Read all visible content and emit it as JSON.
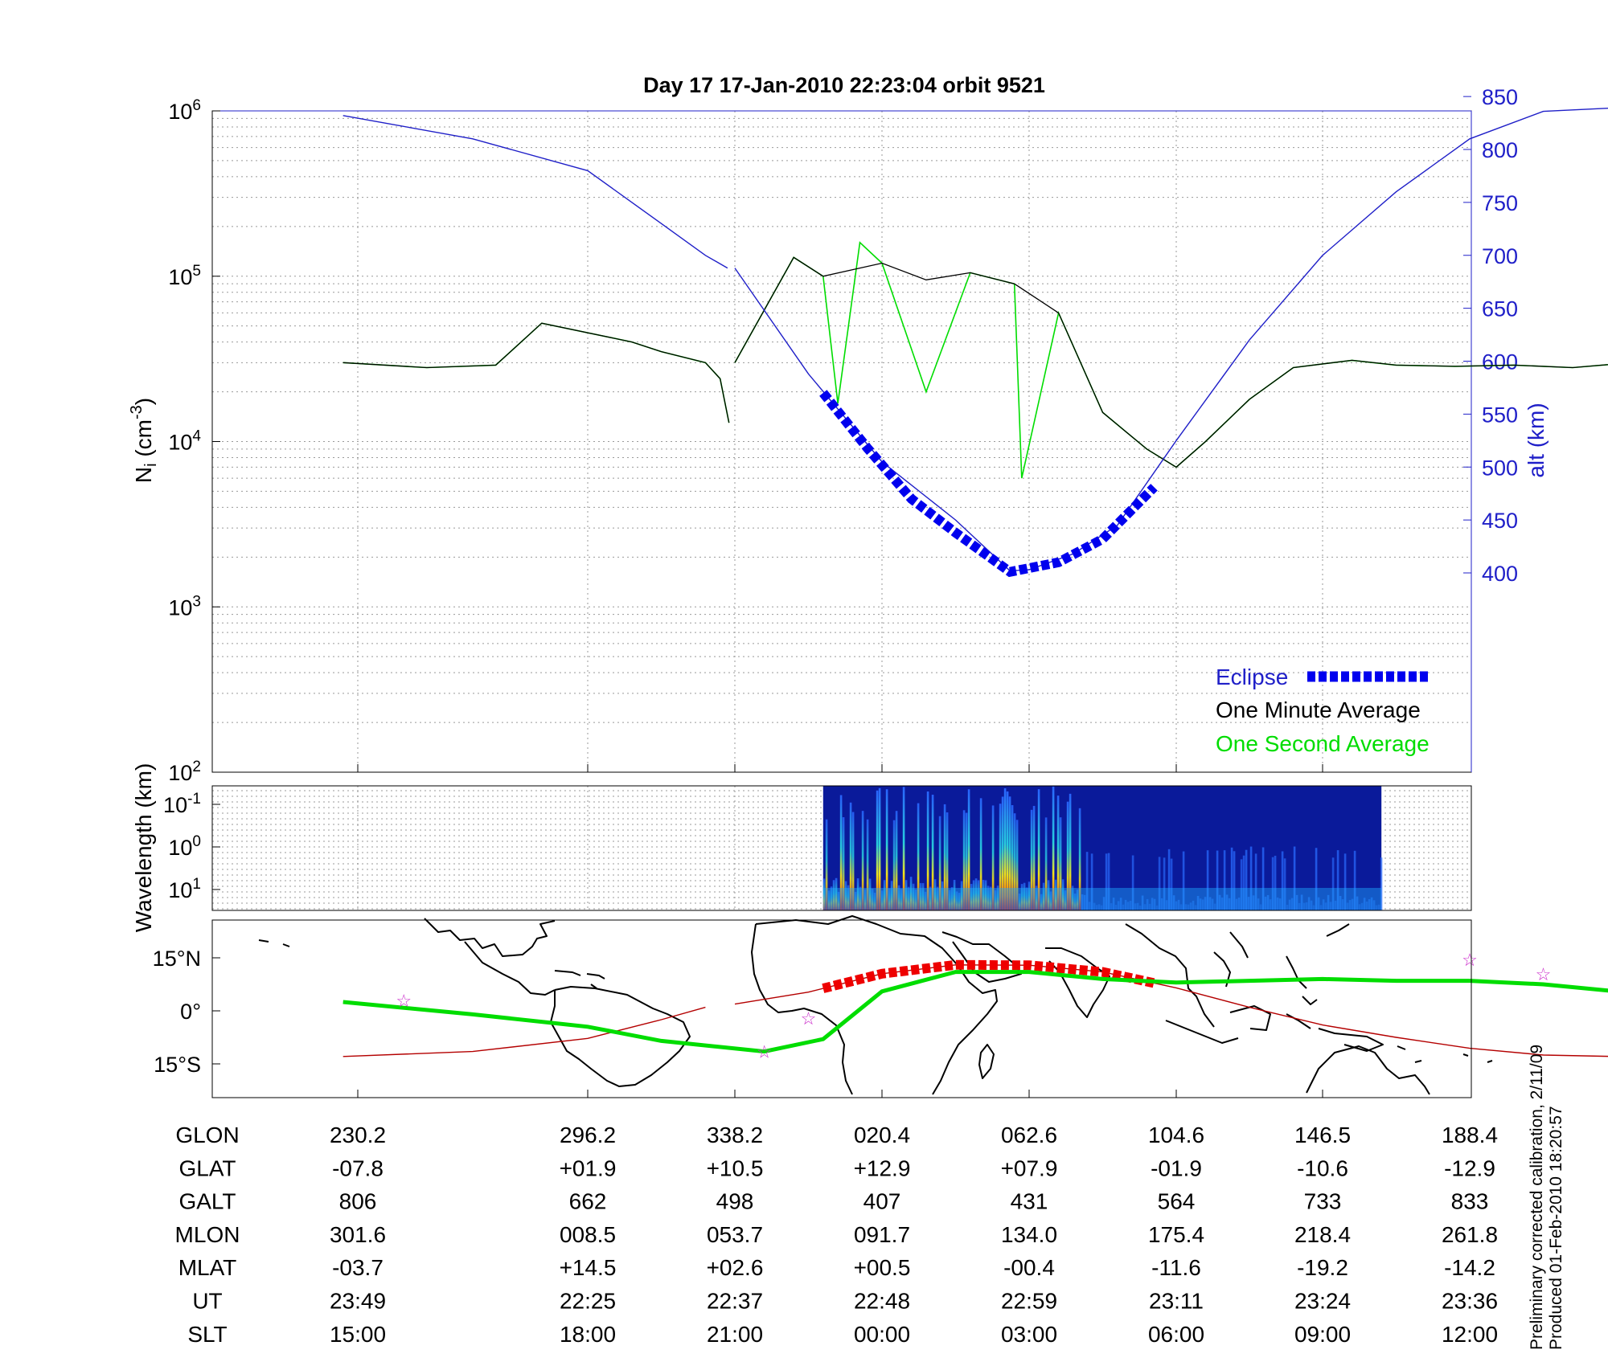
{
  "title": "Day 17  17-Jan-2010 22:23:04   orbit 9521",
  "colors": {
    "eclipse": "#0000ee",
    "one_minute": "#000000",
    "one_second": "#00dd00",
    "altitude": "#1f1fc8",
    "orbit_track": "#b40000",
    "equator_track": "#00dd00",
    "stars": "#cc33cc"
  },
  "chart_data": [
    {
      "type": "line",
      "panel": "density",
      "y_scale": "log",
      "ylabel": "N_i (cm^-3)",
      "ylim": [
        100,
        1000000
      ],
      "y_ticks": [
        "10^2",
        "10^3",
        "10^4",
        "10^5",
        "10^6"
      ],
      "y2label": "alt (km)",
      "y2lim": [
        375,
        875
      ],
      "y2_ticks": [
        400,
        450,
        500,
        550,
        600,
        650,
        700,
        750,
        800,
        850
      ],
      "x_ticks_ut": [
        "23:49",
        "22:25",
        "22:37",
        "22:48",
        "22:59",
        "23:11",
        "23:24",
        "23:36"
      ],
      "legend_position": "bottom-right",
      "series": [
        {
          "name": "One Minute Average",
          "x": [
            -0.1,
            0.3,
            0.6,
            0.8,
            1.3,
            1.5,
            1.8,
            1.9,
            1.96,
            2.0,
            2.4,
            2.6,
            3.0,
            3.3,
            3.6,
            3.9,
            4.2,
            4.5,
            4.8,
            5.0,
            5.2,
            5.5,
            5.8,
            6.2,
            6.5,
            6.9,
            7.3,
            7.7,
            8.1,
            8.5
          ],
          "y": [
            30000,
            28000,
            29000,
            52000,
            40000,
            35000,
            30000,
            24000,
            13000,
            30000,
            130000,
            100000,
            120000,
            95000,
            105000,
            90000,
            60000,
            15000,
            9000,
            7000,
            10000,
            18000,
            28000,
            31000,
            29000,
            28500,
            29000,
            28000,
            30000,
            29000
          ]
        },
        {
          "name": "One Second Average",
          "x": [
            -0.1,
            0.3,
            0.6,
            0.8,
            1.3,
            1.5,
            1.8,
            1.9,
            1.96,
            2.0,
            2.4,
            2.6,
            2.7,
            2.85,
            3.0,
            3.3,
            3.6,
            3.9,
            3.95,
            4.2,
            4.5,
            4.8,
            5.0,
            5.2,
            5.5,
            5.8,
            6.2,
            6.5,
            6.9,
            7.3,
            7.7,
            8.1,
            8.5
          ],
          "y": [
            30000,
            28000,
            29000,
            52000,
            40000,
            35000,
            30000,
            24000,
            13000,
            30000,
            130000,
            100000,
            17000,
            160000,
            120000,
            20000,
            105000,
            90000,
            6000,
            60000,
            15000,
            9000,
            7000,
            10000,
            18000,
            28000,
            31000,
            29000,
            28500,
            29000,
            28000,
            30000,
            29000
          ]
        },
        {
          "name": "Altitude",
          "x": [
            -0.1,
            0.5,
            1.0,
            1.5,
            1.8,
            1.95,
            2.0,
            2.5,
            3.0,
            3.5,
            3.87,
            4.0,
            4.3,
            4.6,
            5.0,
            5.5,
            6.0,
            6.5,
            7.0,
            7.5,
            8.1,
            8.5
          ],
          "y": [
            832,
            810,
            780,
            730,
            700,
            688,
            688,
            588,
            505,
            450,
            402,
            403,
            418,
            445,
            525,
            620,
            700,
            760,
            810,
            836,
            840,
            830
          ]
        },
        {
          "name": "Eclipse",
          "x": [
            2.6,
            2.9,
            3.2,
            3.5,
            3.87,
            4.2,
            4.5,
            4.85
          ],
          "y": [
            570,
            518,
            470,
            438,
            401,
            410,
            432,
            481
          ]
        }
      ]
    },
    {
      "type": "heatmap",
      "panel": "spectrogram",
      "ylabel": "Wavelength (km)",
      "y_ticks": [
        "10^-1",
        "10^0",
        "10^1"
      ],
      "x_range": [
        2.6,
        6.4
      ]
    },
    {
      "type": "line",
      "panel": "map",
      "y_ticks": [
        "15°N",
        "0°",
        "15°S"
      ],
      "series": [
        {
          "name": "Orbit track",
          "x": [
            -0.1,
            0.5,
            1.0,
            1.5,
            1.8,
            2.0,
            2.5,
            3.0,
            3.5,
            4.0,
            4.5,
            5.0,
            5.5,
            6.0,
            6.5,
            7.0,
            7.5,
            8.1,
            8.5
          ],
          "y": [
            -12.9,
            -11.5,
            -7.8,
            -2.5,
            1.0,
            1.9,
            5.3,
            10.5,
            13.0,
            12.9,
            11.0,
            6.5,
            1.0,
            -4.0,
            -7.5,
            -10.6,
            -12.5,
            -13.0,
            -12.9
          ]
        },
        {
          "name": "Magnetic equator",
          "x": [
            -0.1,
            0.5,
            1.0,
            1.5,
            2.2,
            2.6,
            3.0,
            3.5,
            4.0,
            4.5,
            5.0,
            5.5,
            6.0,
            6.5,
            7.0,
            7.5,
            8.0,
            8.5
          ],
          "y": [
            2.5,
            -1.0,
            -4.5,
            -8.5,
            -11.5,
            -8.0,
            5.5,
            11.0,
            11.0,
            9.0,
            8.0,
            8.5,
            9.0,
            8.5,
            8.5,
            7.5,
            5.5,
            2.5
          ]
        },
        {
          "name": "Stars",
          "x": [
            0.2,
            2.2,
            2.5,
            7.0,
            7.5
          ],
          "y": [
            3.0,
            -11.5,
            -2.0,
            14.5,
            10.5
          ]
        }
      ]
    }
  ],
  "legend": {
    "eclipse": "Eclipse",
    "one_minute": "One Minute Average",
    "one_second": "One Second Average"
  },
  "ephemeris": {
    "rows": [
      {
        "label": "GLON",
        "values": [
          "230.2",
          "296.2",
          "338.2",
          "020.4",
          "062.6",
          "104.6",
          "146.5",
          "188.4"
        ]
      },
      {
        "label": "GLAT",
        "values": [
          "-07.8",
          "+01.9",
          "+10.5",
          "+12.9",
          "+07.9",
          "-01.9",
          "-10.6",
          "-12.9"
        ]
      },
      {
        "label": "GALT",
        "values": [
          "806",
          "662",
          "498",
          "407",
          "431",
          "564",
          "733",
          "833"
        ]
      },
      {
        "label": "MLON",
        "values": [
          "301.6",
          "008.5",
          "053.7",
          "091.7",
          "134.0",
          "175.4",
          "218.4",
          "261.8"
        ]
      },
      {
        "label": "MLAT",
        "values": [
          "-03.7",
          "+14.5",
          "+02.6",
          "+00.5",
          "-00.4",
          "-11.6",
          "-19.2",
          "-14.2"
        ]
      },
      {
        "label": "UT",
        "values": [
          "23:49",
          "22:25",
          "22:37",
          "22:48",
          "22:59",
          "23:11",
          "23:24",
          "23:36"
        ]
      },
      {
        "label": "SLT",
        "values": [
          "15:00",
          "18:00",
          "21:00",
          "00:00",
          "03:00",
          "06:00",
          "09:00",
          "12:00"
        ]
      }
    ]
  },
  "side_note": {
    "line1": "Preliminary corrected calibration, 2/11/09",
    "line2": "Produced 01-Feb-2010 18:20:57"
  }
}
